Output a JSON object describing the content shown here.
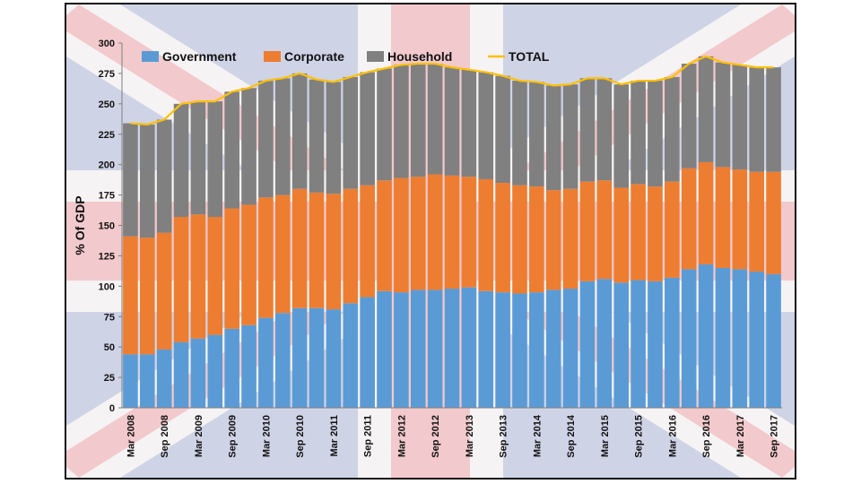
{
  "chart_data": {
    "type": "bar",
    "stacked": true,
    "ylabel": "% Of GDP",
    "xlabel": "",
    "ylim": [
      0,
      300
    ],
    "yticks": [
      0,
      25,
      50,
      75,
      100,
      125,
      150,
      175,
      200,
      225,
      250,
      275,
      300
    ],
    "grid": false,
    "legend_position": "top",
    "background": "Union Jack flag (faded)",
    "categories": [
      "Mar 2008",
      "Jun 2008",
      "Sep 2008",
      "Dec 2008",
      "Mar 2009",
      "Jun 2009",
      "Sep 2009",
      "Dec 2009",
      "Mar 2010",
      "Jun 2010",
      "Sep 2010",
      "Dec 2010",
      "Mar 2011",
      "Jun 2011",
      "Sep 2011",
      "Dec 2011",
      "Mar 2012",
      "Jun 2012",
      "Sep 2012",
      "Dec 2012",
      "Mar 2013",
      "Jun 2013",
      "Sep 2013",
      "Dec 2013",
      "Mar 2014",
      "Jun 2014",
      "Sep 2014",
      "Dec 2014",
      "Mar 2015",
      "Jun 2015",
      "Sep 2015",
      "Dec 2015",
      "Mar 2016",
      "Jun 2016",
      "Sep 2016",
      "Dec 2016",
      "Mar 2017",
      "Jun 2017",
      "Sep 2017"
    ],
    "x_tick_labels": [
      "Mar 2008",
      "Sep 2008",
      "Mar 2009",
      "Sep 2009",
      "Mar 2010",
      "Sep 2010",
      "Mar 2011",
      "Sep 2011",
      "Mar 2012",
      "Sep 2012",
      "Mar 2013",
      "Sep 2013",
      "Mar 2014",
      "Sep 2014",
      "Mar 2015",
      "Sep 2015",
      "Mar 2016",
      "Sep 2016",
      "Mar 2017",
      "Sep 2017"
    ],
    "series": [
      {
        "name": "Government",
        "type": "bar",
        "color": "#5B9BD5",
        "values": [
          44,
          44,
          48,
          54,
          57,
          60,
          65,
          68,
          74,
          78,
          82,
          82,
          81,
          86,
          91,
          96,
          95,
          97,
          97,
          98,
          99,
          96,
          95,
          94,
          95,
          97,
          98,
          104,
          106,
          103,
          105,
          104,
          107,
          114,
          118,
          115,
          114,
          112,
          110
        ]
      },
      {
        "name": "Corporate",
        "type": "bar",
        "color": "#ED7D31",
        "values": [
          97,
          96,
          96,
          103,
          102,
          97,
          99,
          99,
          99,
          97,
          98,
          95,
          95,
          94,
          92,
          91,
          94,
          93,
          95,
          93,
          91,
          92,
          90,
          89,
          87,
          82,
          82,
          82,
          81,
          78,
          79,
          78,
          79,
          83,
          84,
          83,
          82,
          82,
          84
        ]
      },
      {
        "name": "Household",
        "type": "bar",
        "color": "#808080",
        "values": [
          93,
          93,
          93,
          93,
          93,
          95,
          96,
          96,
          96,
          96,
          95,
          93,
          92,
          92,
          93,
          92,
          93,
          93,
          91,
          89,
          88,
          88,
          88,
          86,
          86,
          86,
          86,
          85,
          84,
          85,
          85,
          87,
          86,
          86,
          87,
          86,
          86,
          86,
          86
        ]
      },
      {
        "name": "TOTAL",
        "type": "line",
        "color": "#FFC000",
        "values": [
          234,
          233,
          237,
          250,
          252,
          252,
          260,
          263,
          269,
          271,
          275,
          270,
          268,
          272,
          276,
          279,
          282,
          283,
          283,
          280,
          278,
          276,
          273,
          269,
          268,
          265,
          266,
          271,
          271,
          266,
          269,
          269,
          272,
          283,
          289,
          284,
          282,
          280,
          280
        ]
      }
    ]
  }
}
